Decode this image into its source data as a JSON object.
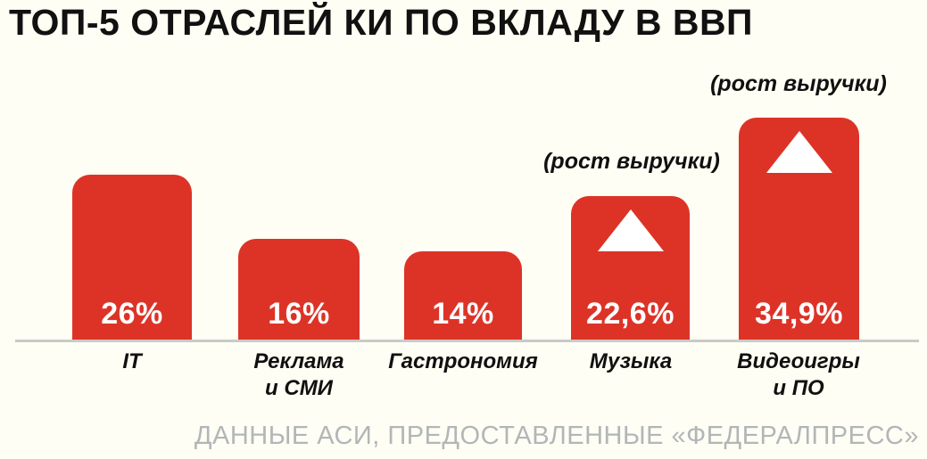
{
  "title": "ТОП-5 ОТРАСЛЕЙ КИ ПО ВКЛАДУ В ВВП",
  "footer": "ДАННЫЕ АСИ, ПРЕДОСТАВЛЕННЫЕ «ФЕДЕРАЛПРЕСС»",
  "colors": {
    "background": "#fffef4",
    "bar": "#dd3327",
    "title_text": "#111111",
    "category_text": "#101010",
    "value_text": "#ffffff",
    "baseline": "#c9c9c9",
    "source_text": "#b2b6b8"
  },
  "bars": [
    {
      "label": "IT",
      "value": 26,
      "value_label": "26%",
      "has_growth_marker": false
    },
    {
      "label": "Реклама\nи СМИ",
      "value": 16,
      "value_label": "16%",
      "has_growth_marker": false
    },
    {
      "label": "Гастрономия",
      "value": 14,
      "value_label": "14%",
      "has_growth_marker": false
    },
    {
      "label": "Музыка",
      "value": 22.6,
      "value_label": "22,6%",
      "has_growth_marker": true
    },
    {
      "label": "Видеоигры и ПО",
      "value": 34.9,
      "value_label": "34,9%",
      "has_growth_marker": true
    }
  ],
  "chart_data": {
    "type": "bar",
    "title": "ТОП-5 ОТРАСЛЕЙ КИ ПО ВКЛАДУ В ВВП",
    "categories": [
      "IT",
      "Реклама и СМИ",
      "Гастрономия",
      "Музыка",
      "Видеоигры и ПО"
    ],
    "values": [
      26,
      16,
      14,
      22.6,
      34.9
    ],
    "value_labels": [
      "26%",
      "16%",
      "14%",
      "22,6%",
      "34,9%"
    ],
    "unit": "%",
    "xlabel": "",
    "ylabel": "",
    "ylim": [
      0,
      40
    ],
    "grid": false,
    "legend": false,
    "axes_visible": false,
    "bar_color": "#dd3327",
    "annotations": [
      {
        "category": "Музыка",
        "text": "(рост выручки)",
        "icon": "up-triangle"
      },
      {
        "category": "Видеоигры и ПО",
        "text": "(рост выручки)",
        "icon": "up-triangle"
      }
    ],
    "source": "ДАННЫЕ АСИ, ПРЕДОСТАВЛЕННЫЕ «ФЕДЕРАЛПРЕСС»"
  }
}
